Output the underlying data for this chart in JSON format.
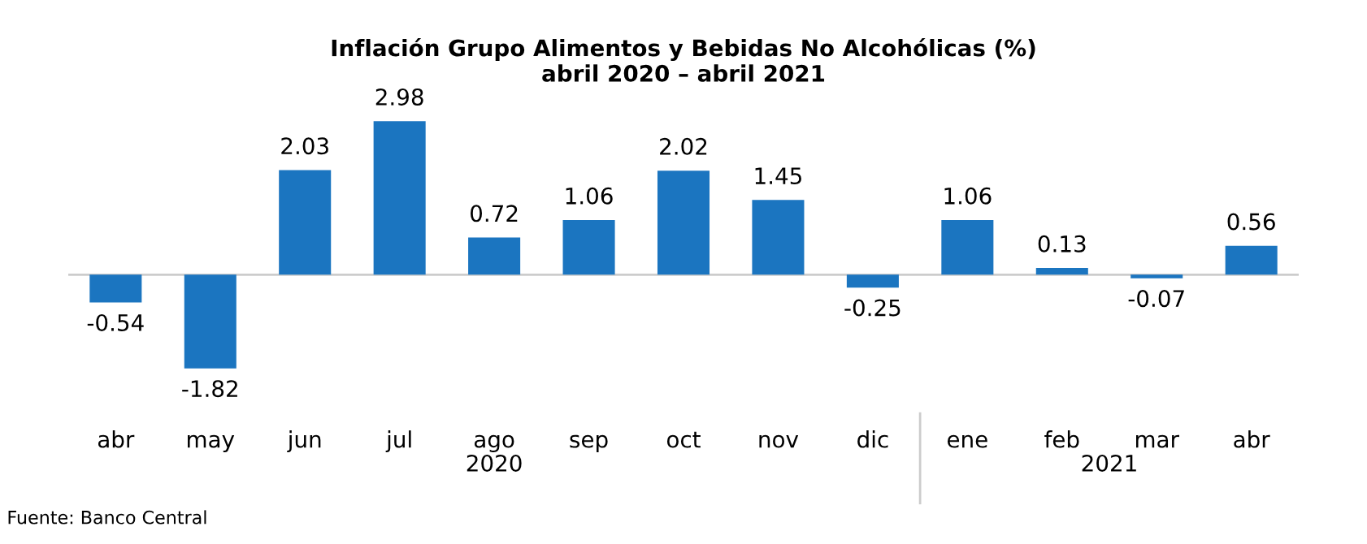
{
  "chart_data": {
    "type": "bar",
    "title": "Inflación Grupo Alimentos y Bebidas No Alcohólicas (%)\nabril 2020 – abril 2021",
    "categories": [
      "abr",
      "may",
      "jun",
      "jul",
      "ago",
      "sep",
      "oct",
      "nov",
      "dic",
      "ene",
      "feb",
      "mar",
      "abr"
    ],
    "values": [
      -0.54,
      -1.82,
      2.03,
      2.98,
      0.72,
      1.06,
      2.02,
      1.45,
      -0.25,
      1.06,
      0.13,
      -0.07,
      0.56
    ],
    "color": "#1b75c0",
    "data_labels": true,
    "grid": false,
    "legend": false,
    "annotations": [
      "2020",
      "2021",
      "Fuente: Banco Central"
    ]
  }
}
